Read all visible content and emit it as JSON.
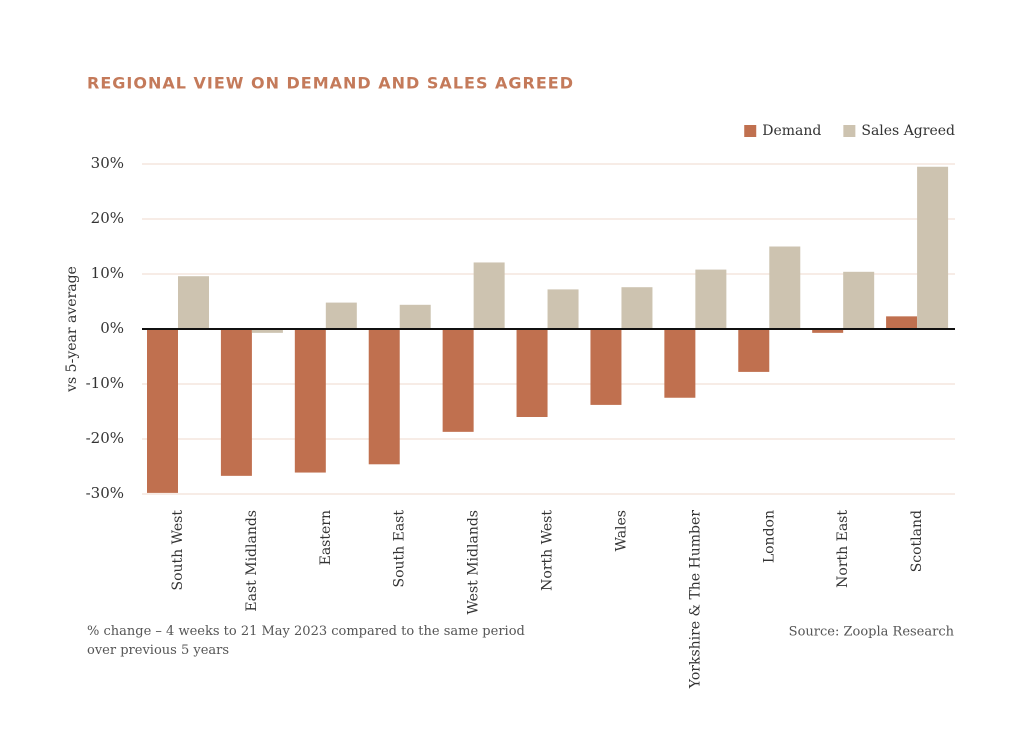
{
  "chart_data": {
    "type": "bar",
    "title": "REGIONAL VIEW ON DEMAND AND SALES AGREED",
    "y_label": "vs 5-year average",
    "categories": [
      "South West",
      "East Midlands",
      "Eastern",
      "South East",
      "West Midlands",
      "North West",
      "Wales",
      "Yorkshire & The Humber",
      "London",
      "North East",
      "Scotland"
    ],
    "series": [
      {
        "name": "Demand",
        "color": "#c0704f",
        "values": [
          -29.8,
          -26.7,
          -26.1,
          -24.6,
          -18.7,
          -16.0,
          -13.8,
          -12.5,
          -7.8,
          -0.7,
          2.3
        ]
      },
      {
        "name": "Sales Agreed",
        "color": "#cdc3b0",
        "values": [
          9.6,
          -0.7,
          4.8,
          4.4,
          12.1,
          7.2,
          7.6,
          10.8,
          15.0,
          10.4,
          29.5
        ]
      }
    ],
    "ylim": [
      -30,
      30
    ],
    "yticks": [
      {
        "value": -30,
        "label": "-30%"
      },
      {
        "value": -20,
        "label": "-20%"
      },
      {
        "value": -10,
        "label": "-10%"
      },
      {
        "value": 0,
        "label": "0%"
      },
      {
        "value": 10,
        "label": "10%"
      },
      {
        "value": 20,
        "label": "20%"
      },
      {
        "value": 30,
        "label": "30%"
      }
    ],
    "grid": true,
    "legend": "top-right",
    "note": "% change – 4 weeks to 21 May 2023 compared to the same period over previous 5 years",
    "source": "Source: Zoopla Research"
  }
}
